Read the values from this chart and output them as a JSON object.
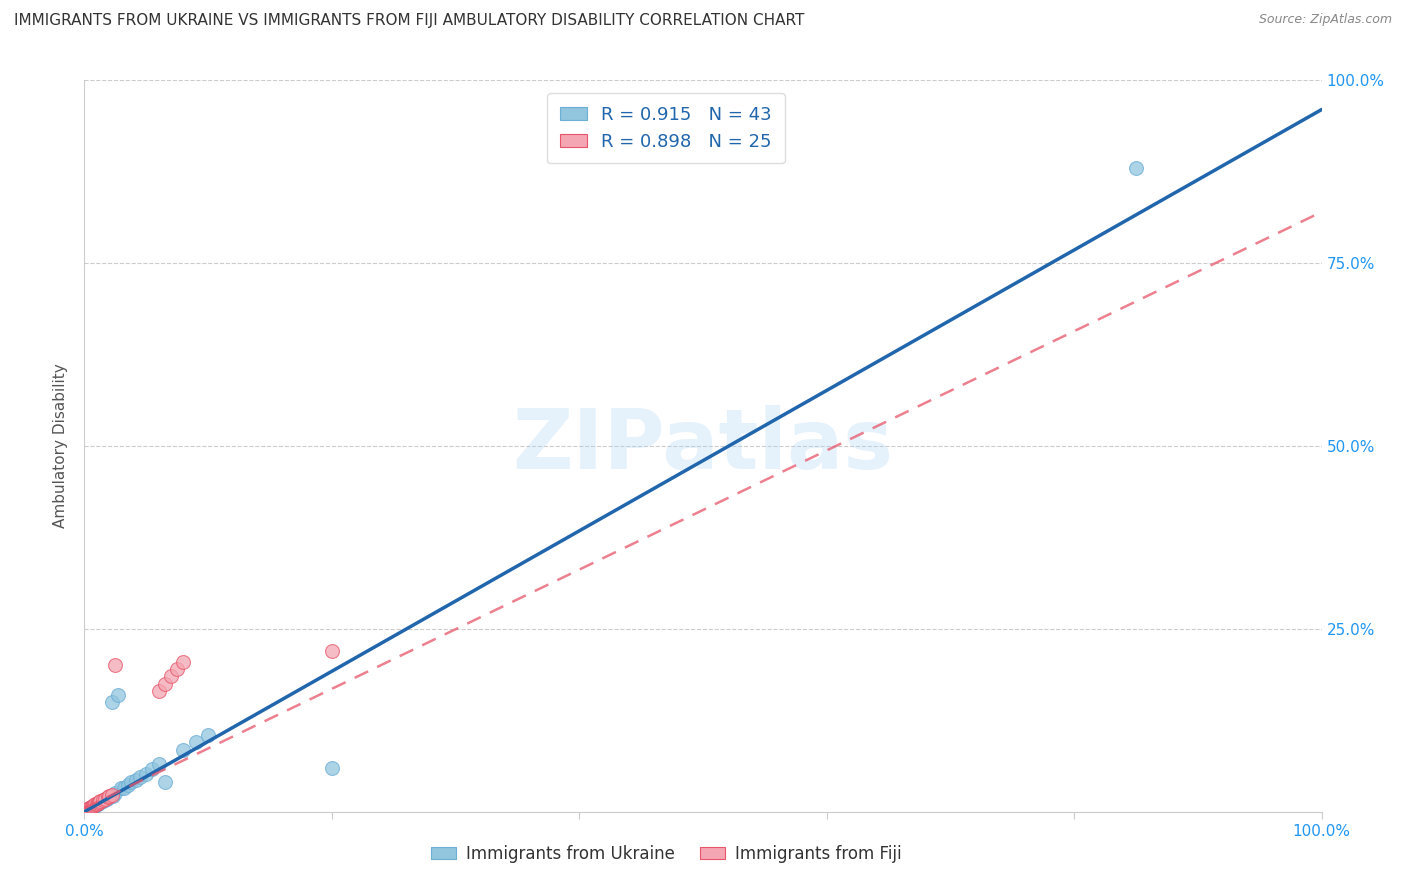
{
  "title": "IMMIGRANTS FROM UKRAINE VS IMMIGRANTS FROM FIJI AMBULATORY DISABILITY CORRELATION CHART",
  "source": "Source: ZipAtlas.com",
  "ylabel": "Ambulatory Disability",
  "xlim": [
    0,
    1.0
  ],
  "ylim": [
    0,
    1.0
  ],
  "ukraine_color": "#92c5de",
  "ukraine_edge_color": "#6baed6",
  "fiji_color": "#f4a6b2",
  "fiji_edge_color": "#e8556a",
  "ukraine_R": 0.915,
  "ukraine_N": 43,
  "fiji_R": 0.898,
  "fiji_N": 25,
  "ukraine_line_color": "#2166ac",
  "fiji_line_color": "#e8556a",
  "watermark": "ZIPatlas",
  "ukraine_scatter_x": [
    0.001,
    0.002,
    0.003,
    0.004,
    0.005,
    0.005,
    0.006,
    0.006,
    0.007,
    0.007,
    0.008,
    0.008,
    0.009,
    0.01,
    0.01,
    0.011,
    0.012,
    0.013,
    0.014,
    0.015,
    0.016,
    0.017,
    0.018,
    0.02,
    0.022,
    0.023,
    0.025,
    0.027,
    0.03,
    0.032,
    0.035,
    0.038,
    0.042,
    0.045,
    0.05,
    0.055,
    0.06,
    0.065,
    0.08,
    0.09,
    0.1,
    0.2,
    0.85
  ],
  "ukraine_scatter_y": [
    0.002,
    0.003,
    0.004,
    0.003,
    0.005,
    0.006,
    0.005,
    0.007,
    0.006,
    0.008,
    0.007,
    0.008,
    0.009,
    0.01,
    0.011,
    0.01,
    0.012,
    0.013,
    0.014,
    0.015,
    0.016,
    0.017,
    0.018,
    0.02,
    0.15,
    0.022,
    0.025,
    0.16,
    0.032,
    0.033,
    0.036,
    0.04,
    0.044,
    0.048,
    0.052,
    0.058,
    0.065,
    0.04,
    0.085,
    0.095,
    0.105,
    0.06,
    0.88
  ],
  "ukraine_line_x": [
    0.0,
    1.0
  ],
  "ukraine_line_y": [
    0.0,
    0.96
  ],
  "fiji_scatter_x": [
    0.001,
    0.002,
    0.003,
    0.004,
    0.005,
    0.006,
    0.007,
    0.008,
    0.009,
    0.01,
    0.011,
    0.012,
    0.013,
    0.015,
    0.017,
    0.019,
    0.02,
    0.022,
    0.025,
    0.06,
    0.065,
    0.07,
    0.075,
    0.08,
    0.2
  ],
  "fiji_scatter_y": [
    0.002,
    0.003,
    0.004,
    0.005,
    0.006,
    0.007,
    0.008,
    0.009,
    0.01,
    0.011,
    0.012,
    0.013,
    0.014,
    0.016,
    0.018,
    0.02,
    0.021,
    0.023,
    0.2,
    0.165,
    0.175,
    0.185,
    0.195,
    0.205,
    0.22
  ],
  "fiji_line_x": [
    0.0,
    1.0
  ],
  "fiji_line_y": [
    0.005,
    0.82
  ]
}
